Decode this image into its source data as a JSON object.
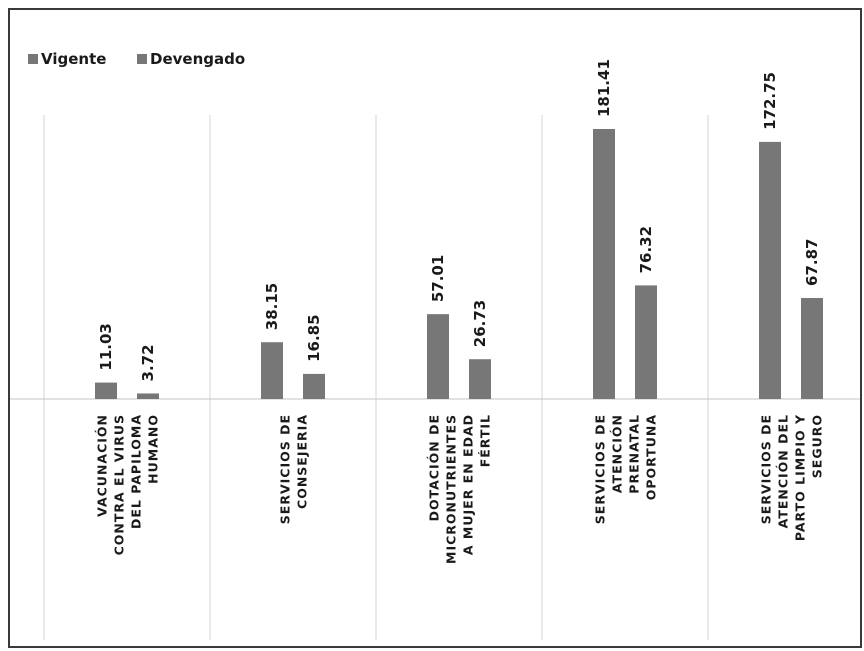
{
  "chart_data": {
    "type": "bar",
    "title": "",
    "xlabel": "",
    "ylabel": "",
    "ylim": [
      0,
      200
    ],
    "grid": false,
    "legend_position": "top-left",
    "label_rotation": -90,
    "categories": [
      [
        "VACUNACIÓN",
        "CONTRA EL VIRUS",
        "DEL PAPILOMA",
        "HUMANO"
      ],
      [
        "SERVICIOS DE",
        "CONSEJERIA"
      ],
      [
        "DOTACIÓN DE",
        "MICRONUTRIENTES",
        "A MUJER EN EDAD",
        "FÉRTIL"
      ],
      [
        "SERVICIOS DE",
        "ATENCIÓN",
        "PRENATAL",
        "OPORTUNA"
      ],
      [
        "SERVICIOS DE",
        "ATENCIÓN DEL",
        "PARTO LIMPIO Y",
        "SEGURO"
      ]
    ],
    "series": [
      {
        "name": "Vigente",
        "color": "#777777",
        "values": [
          11.03,
          38.15,
          57.01,
          181.41,
          172.75
        ]
      },
      {
        "name": "Devengado",
        "color": "#777777",
        "values": [
          3.72,
          16.85,
          26.73,
          76.32,
          67.87
        ]
      }
    ],
    "data_labels": [
      [
        "11.03",
        "38.15",
        "57.01",
        "181.41",
        "172.75"
      ],
      [
        "3.72",
        "16.85",
        "26.73",
        "76.32",
        "67.87"
      ]
    ]
  }
}
